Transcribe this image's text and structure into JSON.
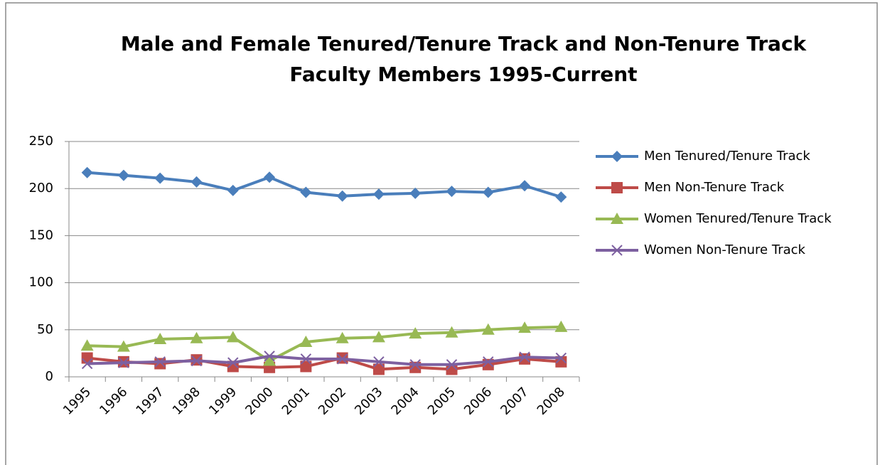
{
  "chart_data": {
    "type": "line",
    "title": "Male and Female Tenured/Tenure Track and Non-Tenure Track Faculty Members 1995-Current",
    "categories": [
      "1995",
      "1996",
      "1997",
      "1998",
      "1999",
      "2000",
      "2001",
      "2002",
      "2003",
      "2004",
      "2005",
      "2006",
      "2007",
      "2008"
    ],
    "series": [
      {
        "name": "Men Tenured/Tenure Track",
        "color": "#4a7ebb",
        "marker": "diamond",
        "values": [
          217,
          214,
          211,
          207,
          198,
          212,
          196,
          192,
          194,
          195,
          197,
          196,
          203,
          191
        ]
      },
      {
        "name": "Men Non-Tenure Track",
        "color": "#be4b48",
        "marker": "square",
        "values": [
          20,
          16,
          14,
          18,
          11,
          10,
          11,
          20,
          8,
          10,
          8,
          13,
          19,
          16
        ]
      },
      {
        "name": "Women Tenured/Tenure Track",
        "color": "#98b954",
        "marker": "triangle",
        "values": [
          33,
          32,
          40,
          41,
          42,
          17,
          37,
          41,
          42,
          46,
          47,
          50,
          52,
          53
        ]
      },
      {
        "name": "Women Non-Tenure Track",
        "color": "#7d60a0",
        "marker": "x",
        "values": [
          14,
          15,
          16,
          17,
          15,
          22,
          19,
          19,
          16,
          13,
          13,
          16,
          21,
          20
        ]
      }
    ],
    "ylim": [
      0,
      250
    ],
    "yticks": [
      0,
      50,
      100,
      150,
      200,
      250
    ],
    "grid": true,
    "legend": "right"
  }
}
